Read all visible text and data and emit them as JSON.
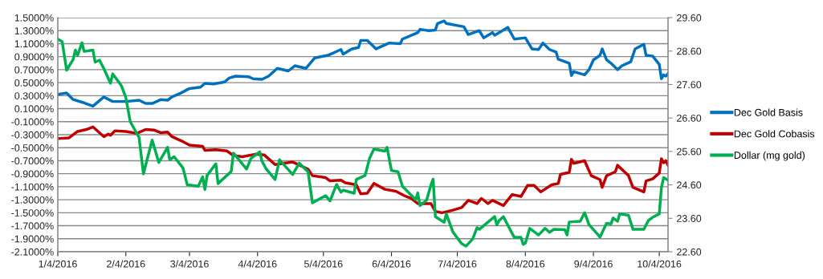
{
  "chart_data": {
    "type": "line",
    "xlim": [
      "2016-01-04",
      "2016-10-08"
    ],
    "xticks": [
      {
        "value": "2016-01-04",
        "label": "1/4/2016"
      },
      {
        "value": "2016-02-04",
        "label": "2/4/2016"
      },
      {
        "value": "2016-03-04",
        "label": "3/4/2016"
      },
      {
        "value": "2016-04-04",
        "label": "4/4/2016"
      },
      {
        "value": "2016-05-04",
        "label": "5/4/2016"
      },
      {
        "value": "2016-06-04",
        "label": "6/4/2016"
      },
      {
        "value": "2016-07-04",
        "label": "7/4/2016"
      },
      {
        "value": "2016-08-04",
        "label": "8/4/2016"
      },
      {
        "value": "2016-09-04",
        "label": "9/4/2016"
      },
      {
        "value": "2016-10-04",
        "label": "10/4/2016"
      }
    ],
    "ylim": [
      -2.1,
      1.5
    ],
    "yticks": [
      {
        "value": -2.1,
        "label": "-2.1000%"
      },
      {
        "value": -1.9,
        "label": "-1.9000%"
      },
      {
        "value": -1.7,
        "label": "-1.7000%"
      },
      {
        "value": -1.5,
        "label": "-1.5000%"
      },
      {
        "value": -1.3,
        "label": "-1.3000%"
      },
      {
        "value": -1.1,
        "label": "-1.1000%"
      },
      {
        "value": -0.9,
        "label": "-0.9000%"
      },
      {
        "value": -0.7,
        "label": "-0.7000%"
      },
      {
        "value": -0.5,
        "label": "-0.5000%"
      },
      {
        "value": -0.3,
        "label": "-0.3000%"
      },
      {
        "value": -0.1,
        "label": "-0.1000%"
      },
      {
        "value": 0.1,
        "label": "0.1000%"
      },
      {
        "value": 0.3,
        "label": "0.3000%"
      },
      {
        "value": 0.5,
        "label": "0.5000%"
      },
      {
        "value": 0.7,
        "label": "0.7000%"
      },
      {
        "value": 0.9,
        "label": "0.9000%"
      },
      {
        "value": 1.1,
        "label": "1.1000%"
      },
      {
        "value": 1.3,
        "label": "1.3000%"
      },
      {
        "value": 1.5,
        "label": "1.5000%"
      }
    ],
    "y2lim": [
      22.6,
      29.6
    ],
    "y2ticks": [
      {
        "value": 22.6,
        "label": "22.60"
      },
      {
        "value": 23.6,
        "label": "23.60"
      },
      {
        "value": 24.6,
        "label": "24.60"
      },
      {
        "value": 25.6,
        "label": "25.60"
      },
      {
        "value": 26.6,
        "label": "26.60"
      },
      {
        "value": 27.6,
        "label": "27.60"
      },
      {
        "value": 28.6,
        "label": "28.60"
      },
      {
        "value": 29.6,
        "label": "29.60"
      }
    ],
    "grid": "y",
    "legend": "right",
    "marker": "none",
    "line_style": "solid",
    "series": [
      {
        "name": "Dec Gold Basis",
        "color": "#0070c0",
        "x": [
          "2016-01-04",
          "2016-01-08",
          "2016-01-11",
          "2016-01-16",
          "2016-01-20",
          "2016-01-25",
          "2016-01-29",
          "2016-02-04",
          "2016-02-10",
          "2016-02-13",
          "2016-02-16",
          "2016-02-20",
          "2016-02-23",
          "2016-02-25",
          "2016-02-29",
          "2016-03-04",
          "2016-03-09",
          "2016-03-11",
          "2016-03-15",
          "2016-03-20",
          "2016-03-22",
          "2016-03-25",
          "2016-03-31",
          "2016-04-02",
          "2016-04-06",
          "2016-04-09",
          "2016-04-13",
          "2016-04-18",
          "2016-04-21",
          "2016-04-26",
          "2016-04-30",
          "2016-05-06",
          "2016-05-12",
          "2016-05-13",
          "2016-05-17",
          "2016-05-20",
          "2016-05-21",
          "2016-05-24",
          "2016-05-28",
          "2016-06-03",
          "2016-06-08",
          "2016-06-09",
          "2016-06-16",
          "2016-06-17",
          "2016-06-21",
          "2016-06-24",
          "2016-06-25",
          "2016-06-28",
          "2016-06-29",
          "2016-07-07",
          "2016-07-09",
          "2016-07-14",
          "2016-07-16",
          "2016-07-20",
          "2016-07-21",
          "2016-07-27",
          "2016-07-30",
          "2016-08-04",
          "2016-08-07",
          "2016-08-10",
          "2016-08-12",
          "2016-08-15",
          "2016-08-18",
          "2016-08-19",
          "2016-08-24",
          "2016-08-25",
          "2016-08-26",
          "2016-08-31",
          "2016-09-02",
          "2016-09-04",
          "2016-09-07",
          "2016-09-08",
          "2016-09-10",
          "2016-09-12",
          "2016-09-15",
          "2016-09-17",
          "2016-09-21",
          "2016-09-23",
          "2016-09-27",
          "2016-09-28",
          "2016-10-01",
          "2016-10-04",
          "2016-10-05",
          "2016-10-06",
          "2016-10-07",
          "2016-10-08"
        ],
        "values": [
          0.32,
          0.34,
          0.24,
          0.19,
          0.14,
          0.28,
          0.21,
          0.21,
          0.23,
          0.18,
          0.18,
          0.24,
          0.23,
          0.28,
          0.34,
          0.41,
          0.43,
          0.49,
          0.48,
          0.51,
          0.57,
          0.6,
          0.59,
          0.56,
          0.55,
          0.6,
          0.72,
          0.68,
          0.76,
          0.72,
          0.88,
          0.92,
          1.01,
          0.94,
          1.02,
          1.04,
          1.15,
          1.15,
          1.02,
          1.11,
          1.1,
          1.17,
          1.27,
          1.32,
          1.3,
          1.31,
          1.41,
          1.45,
          1.41,
          1.36,
          1.24,
          1.3,
          1.19,
          1.27,
          1.23,
          1.35,
          1.17,
          1.19,
          1.02,
          1.01,
          1.11,
          1.01,
          0.97,
          0.86,
          0.8,
          0.61,
          0.67,
          0.62,
          0.7,
          0.85,
          0.92,
          1.02,
          0.85,
          0.8,
          0.7,
          0.76,
          0.82,
          1.02,
          1.09,
          0.92,
          0.91,
          0.78,
          0.56,
          0.62,
          0.6,
          0.64
        ]
      },
      {
        "name": "Dec Gold Cobasis",
        "color": "#c00000",
        "x": [
          "2016-01-04",
          "2016-01-09",
          "2016-01-13",
          "2016-01-17",
          "2016-01-20",
          "2016-01-25",
          "2016-01-27",
          "2016-01-28",
          "2016-01-30",
          "2016-02-04",
          "2016-02-09",
          "2016-02-13",
          "2016-02-17",
          "2016-02-20",
          "2016-02-23",
          "2016-02-25",
          "2016-02-29",
          "2016-03-04",
          "2016-03-10",
          "2016-03-11",
          "2016-03-16",
          "2016-03-21",
          "2016-03-24",
          "2016-03-28",
          "2016-04-03",
          "2016-04-07",
          "2016-04-12",
          "2016-04-20",
          "2016-04-27",
          "2016-04-29",
          "2016-05-05",
          "2016-05-07",
          "2016-05-12",
          "2016-05-14",
          "2016-05-19",
          "2016-05-21",
          "2016-05-24",
          "2016-05-27",
          "2016-06-01",
          "2016-06-06",
          "2016-06-10",
          "2016-06-13",
          "2016-06-16",
          "2016-06-22",
          "2016-06-24",
          "2016-06-27",
          "2016-07-02",
          "2016-07-06",
          "2016-07-09",
          "2016-07-13",
          "2016-07-15",
          "2016-07-18",
          "2016-07-20",
          "2016-07-25",
          "2016-07-29",
          "2016-08-02",
          "2016-08-05",
          "2016-08-08",
          "2016-08-11",
          "2016-08-16",
          "2016-08-19",
          "2016-08-20",
          "2016-08-24",
          "2016-08-25",
          "2016-08-26",
          "2016-08-31",
          "2016-09-03",
          "2016-09-07",
          "2016-09-08",
          "2016-09-10",
          "2016-09-14",
          "2016-09-15",
          "2016-09-20",
          "2016-09-22",
          "2016-09-27",
          "2016-09-28",
          "2016-10-01",
          "2016-10-04",
          "2016-10-05",
          "2016-10-06",
          "2016-10-07",
          "2016-10-08"
        ],
        "values": [
          -0.36,
          -0.35,
          -0.25,
          -0.22,
          -0.18,
          -0.33,
          -0.29,
          -0.31,
          -0.24,
          -0.25,
          -0.28,
          -0.22,
          -0.23,
          -0.27,
          -0.26,
          -0.33,
          -0.39,
          -0.46,
          -0.48,
          -0.54,
          -0.53,
          -0.55,
          -0.62,
          -0.64,
          -0.6,
          -0.61,
          -0.76,
          -0.72,
          -0.83,
          -0.93,
          -0.96,
          -1.01,
          -1.0,
          -1.04,
          -1.07,
          -1.21,
          -1.2,
          -1.05,
          -1.14,
          -1.17,
          -1.24,
          -1.28,
          -1.36,
          -1.36,
          -1.48,
          -1.5,
          -1.46,
          -1.42,
          -1.31,
          -1.36,
          -1.28,
          -1.36,
          -1.31,
          -1.39,
          -1.22,
          -1.25,
          -1.08,
          -1.08,
          -1.18,
          -1.07,
          -1.05,
          -0.91,
          -0.88,
          -0.68,
          -0.74,
          -0.7,
          -0.93,
          -0.99,
          -1.11,
          -0.93,
          -0.87,
          -0.77,
          -0.93,
          -1.11,
          -1.18,
          -1.01,
          -0.98,
          -0.89,
          -0.67,
          -0.73,
          -0.7,
          -0.77
        ]
      },
      {
        "name": "Dollar (mg gold)",
        "color": "#00b050",
        "axis": "y2",
        "x": [
          "2016-01-04",
          "2016-01-06",
          "2016-01-08",
          "2016-01-11",
          "2016-01-12",
          "2016-01-13",
          "2016-01-15",
          "2016-01-16",
          "2016-01-20",
          "2016-01-21",
          "2016-01-23",
          "2016-01-25",
          "2016-01-28",
          "2016-01-29",
          "2016-02-02",
          "2016-02-04",
          "2016-02-06",
          "2016-02-09",
          "2016-02-10",
          "2016-02-12",
          "2016-02-16",
          "2016-02-19",
          "2016-02-23",
          "2016-02-24",
          "2016-02-26",
          "2016-03-01",
          "2016-03-03",
          "2016-03-08",
          "2016-03-10",
          "2016-03-11",
          "2016-03-12",
          "2016-03-16",
          "2016-03-17",
          "2016-03-23",
          "2016-03-24",
          "2016-03-30",
          "2016-04-01",
          "2016-04-05",
          "2016-04-06",
          "2016-04-08",
          "2016-04-12",
          "2016-04-14",
          "2016-04-20",
          "2016-04-23",
          "2016-04-27",
          "2016-04-29",
          "2016-05-05",
          "2016-05-07",
          "2016-05-10",
          "2016-05-12",
          "2016-05-13",
          "2016-05-18",
          "2016-05-19",
          "2016-05-23",
          "2016-05-25",
          "2016-05-27",
          "2016-06-01",
          "2016-06-02",
          "2016-06-04",
          "2016-06-07",
          "2016-06-09",
          "2016-06-15",
          "2016-06-16",
          "2016-06-17",
          "2016-06-20",
          "2016-06-22",
          "2016-06-23",
          "2016-06-24",
          "2016-06-28",
          "2016-06-29",
          "2016-07-02",
          "2016-07-06",
          "2016-07-08",
          "2016-07-11",
          "2016-07-13",
          "2016-07-14",
          "2016-07-21",
          "2016-07-22",
          "2016-07-23",
          "2016-07-25",
          "2016-07-28",
          "2016-07-30",
          "2016-08-02",
          "2016-08-03",
          "2016-08-04",
          "2016-08-06",
          "2016-08-10",
          "2016-08-13",
          "2016-08-15",
          "2016-08-17",
          "2016-08-22",
          "2016-08-23",
          "2016-08-24",
          "2016-08-29",
          "2016-08-31",
          "2016-09-02",
          "2016-09-07",
          "2016-09-10",
          "2016-09-12",
          "2016-09-13",
          "2016-09-15",
          "2016-09-16",
          "2016-09-20",
          "2016-09-22",
          "2016-09-27",
          "2016-09-29",
          "2016-10-01",
          "2016-10-04",
          "2016-10-05",
          "2016-10-06",
          "2016-10-08"
        ],
        "values": [
          28.96,
          28.88,
          28.03,
          28.35,
          28.63,
          28.47,
          28.85,
          28.59,
          28.63,
          28.27,
          28.33,
          28.07,
          27.64,
          27.92,
          27.56,
          27.21,
          26.49,
          26.14,
          26.02,
          24.93,
          25.94,
          25.27,
          25.72,
          25.35,
          25.44,
          25.11,
          24.6,
          24.56,
          24.84,
          24.46,
          24.88,
          25.23,
          24.64,
          25.0,
          25.55,
          25.07,
          25.39,
          25.59,
          25.31,
          25.07,
          24.76,
          25.35,
          24.91,
          25.25,
          24.99,
          24.06,
          24.28,
          24.12,
          24.61,
          24.38,
          24.44,
          24.35,
          24.76,
          24.88,
          25.39,
          25.67,
          25.61,
          25.72,
          25.03,
          24.99,
          24.56,
          24.16,
          24.36,
          23.98,
          24.14,
          24.6,
          24.77,
          23.65,
          23.48,
          23.73,
          23.19,
          22.84,
          22.77,
          22.98,
          23.32,
          23.27,
          23.65,
          23.4,
          23.53,
          23.65,
          23.27,
          23.03,
          23.03,
          22.82,
          22.86,
          23.3,
          23.1,
          23.3,
          23.18,
          23.27,
          23.26,
          23.1,
          23.49,
          23.51,
          23.77,
          23.41,
          23.04,
          23.45,
          23.43,
          23.61,
          23.51,
          23.73,
          23.69,
          23.27,
          23.27,
          23.53,
          23.63,
          23.73,
          24.52,
          24.82,
          24.74
        ]
      }
    ]
  }
}
